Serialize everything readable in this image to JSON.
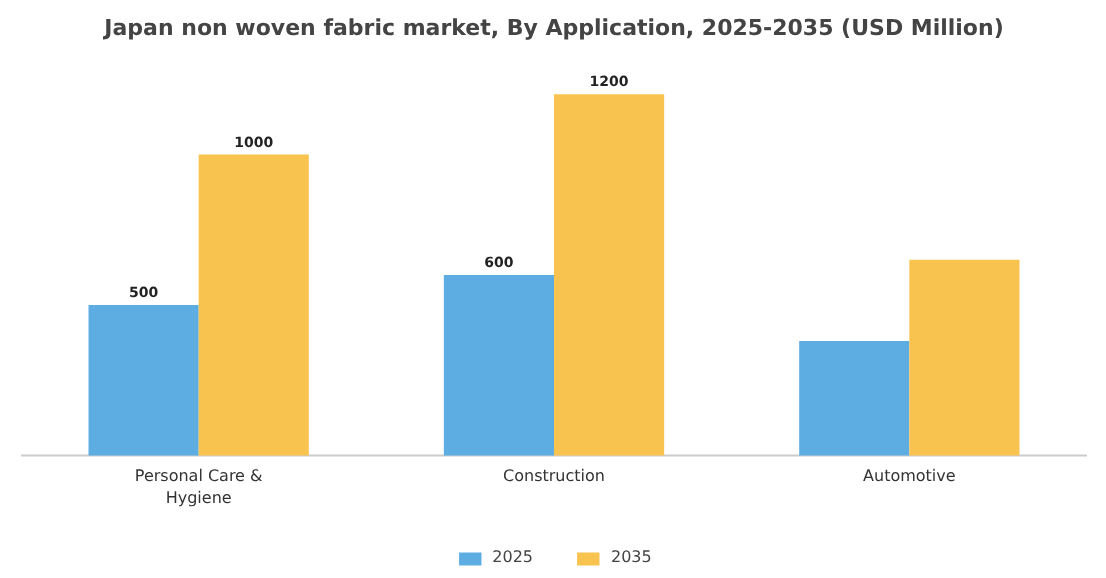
{
  "chart_data": {
    "type": "bar",
    "title": "Japan non woven fabric market, By Application, 2025-2035 (USD Million)",
    "categories": [
      "Personal Care & Hygiene",
      "Construction",
      "Automotive"
    ],
    "series": [
      {
        "name": "2025",
        "color": "#5dade2",
        "values": [
          500,
          600,
          380
        ],
        "value_labels": [
          "500",
          "600",
          null
        ]
      },
      {
        "name": "2035",
        "color": "#f8c44f",
        "values": [
          1000,
          1200,
          650
        ],
        "value_labels": [
          "1000",
          "1200",
          null
        ]
      }
    ],
    "legend": "bottom",
    "tick_labels": "x"
  }
}
